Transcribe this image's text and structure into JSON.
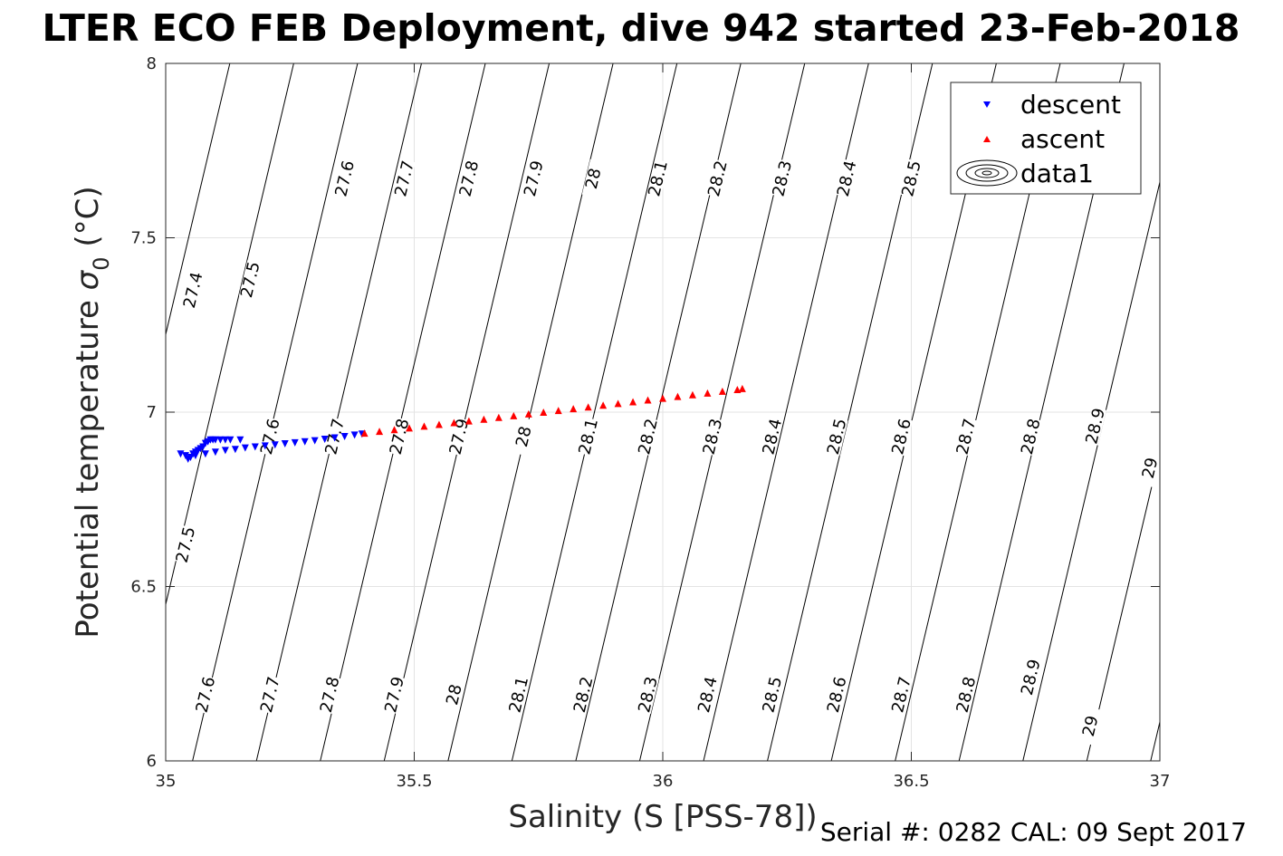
{
  "chart_data": {
    "type": "scatter",
    "title": "LTER ECO FEB Deployment, dive 942 started 23-Feb-2018",
    "xlabel": "Salinity (S [PSS-78])",
    "ylabel_main": "Potential temperature ",
    "ylabel_sym": "σ",
    "ylabel_sub": "0",
    "ylabel_unit": " (°C)",
    "xlim": [
      35,
      37
    ],
    "ylim": [
      6,
      8
    ],
    "xticks": [
      35,
      35.5,
      36,
      36.5,
      37
    ],
    "xtick_labels": [
      "35",
      "35.5",
      "36",
      "36.5",
      "37"
    ],
    "yticks": [
      6,
      6.5,
      7,
      7.5,
      8
    ],
    "ytick_labels": [
      "6",
      "6.5",
      "7",
      "7.5",
      "8"
    ],
    "grid": true,
    "legend_position": "top-right",
    "series": [
      {
        "name": "descent",
        "marker": "triangle-down",
        "color": "#0000ff",
        "points": [
          [
            35.03,
            6.88
          ],
          [
            35.04,
            6.875
          ],
          [
            35.045,
            6.865
          ],
          [
            35.05,
            6.87
          ],
          [
            35.055,
            6.88
          ],
          [
            35.06,
            6.885
          ],
          [
            35.065,
            6.89
          ],
          [
            35.07,
            6.895
          ],
          [
            35.075,
            6.9
          ],
          [
            35.08,
            6.91
          ],
          [
            35.085,
            6.915
          ],
          [
            35.09,
            6.92
          ],
          [
            35.095,
            6.92
          ],
          [
            35.1,
            6.92
          ],
          [
            35.11,
            6.92
          ],
          [
            35.12,
            6.92
          ],
          [
            35.13,
            6.92
          ],
          [
            35.15,
            6.92
          ],
          [
            35.06,
            6.875
          ],
          [
            35.08,
            6.88
          ],
          [
            35.1,
            6.885
          ],
          [
            35.12,
            6.89
          ],
          [
            35.14,
            6.893
          ],
          [
            35.16,
            6.897
          ],
          [
            35.18,
            6.9
          ],
          [
            35.2,
            6.903
          ],
          [
            35.22,
            6.906
          ],
          [
            35.24,
            6.909
          ],
          [
            35.26,
            6.912
          ],
          [
            35.28,
            6.915
          ],
          [
            35.3,
            6.918
          ],
          [
            35.32,
            6.922
          ],
          [
            35.34,
            6.926
          ],
          [
            35.36,
            6.93
          ],
          [
            35.38,
            6.934
          ],
          [
            35.395,
            6.937
          ]
        ]
      },
      {
        "name": "ascent",
        "marker": "triangle-up",
        "color": "#ff0000",
        "points": [
          [
            35.4,
            6.94
          ],
          [
            35.43,
            6.945
          ],
          [
            35.46,
            6.95
          ],
          [
            35.49,
            6.955
          ],
          [
            35.52,
            6.96
          ],
          [
            35.55,
            6.965
          ],
          [
            35.58,
            6.97
          ],
          [
            35.61,
            6.975
          ],
          [
            35.64,
            6.98
          ],
          [
            35.67,
            6.985
          ],
          [
            35.7,
            6.99
          ],
          [
            35.73,
            6.995
          ],
          [
            35.76,
            7.0
          ],
          [
            35.79,
            7.005
          ],
          [
            35.82,
            7.01
          ],
          [
            35.85,
            7.015
          ],
          [
            35.88,
            7.02
          ],
          [
            35.91,
            7.025
          ],
          [
            35.94,
            7.03
          ],
          [
            35.97,
            7.035
          ],
          [
            36.0,
            7.04
          ],
          [
            36.03,
            7.045
          ],
          [
            36.06,
            7.05
          ],
          [
            36.09,
            7.055
          ],
          [
            36.12,
            7.06
          ],
          [
            36.15,
            7.065
          ],
          [
            36.16,
            7.068
          ]
        ]
      },
      {
        "name": "data1",
        "marker": "contour",
        "color": "#000000",
        "contours": [
          {
            "level": "27.4",
            "label_positions": [
              [
                35.055,
                7.35
              ]
            ]
          },
          {
            "level": "27.5",
            "label_positions": [
              [
                35.17,
                7.38
              ],
              [
                35.04,
                6.62
              ]
            ]
          },
          {
            "level": "27.6",
            "label_positions": [
              [
                35.36,
                7.67
              ],
              [
                35.21,
                6.93
              ],
              [
                35.08,
                6.19
              ]
            ]
          },
          {
            "level": "27.7",
            "label_positions": [
              [
                35.48,
                7.67
              ],
              [
                35.34,
                6.93
              ],
              [
                35.21,
                6.19
              ]
            ]
          },
          {
            "level": "27.8",
            "label_positions": [
              [
                35.61,
                7.67
              ],
              [
                35.47,
                6.93
              ],
              [
                35.33,
                6.19
              ]
            ]
          },
          {
            "level": "27.9",
            "label_positions": [
              [
                35.74,
                7.67
              ],
              [
                35.59,
                6.93
              ],
              [
                35.46,
                6.19
              ]
            ]
          },
          {
            "level": "28",
            "label_positions": [
              [
                35.86,
                7.67
              ],
              [
                35.72,
                6.93
              ],
              [
                35.58,
                6.19
              ]
            ]
          },
          {
            "level": "28.1",
            "label_positions": [
              [
                35.99,
                7.67
              ],
              [
                35.85,
                6.93
              ],
              [
                35.71,
                6.19
              ]
            ]
          },
          {
            "level": "28.2",
            "label_positions": [
              [
                36.11,
                7.67
              ],
              [
                35.97,
                6.93
              ],
              [
                35.84,
                6.19
              ]
            ]
          },
          {
            "level": "28.3",
            "label_positions": [
              [
                36.24,
                7.67
              ],
              [
                36.1,
                6.93
              ],
              [
                35.97,
                6.19
              ]
            ]
          },
          {
            "level": "28.4",
            "label_positions": [
              [
                36.37,
                7.67
              ],
              [
                36.22,
                6.93
              ],
              [
                36.09,
                6.19
              ]
            ]
          },
          {
            "level": "28.5",
            "label_positions": [
              [
                36.5,
                7.67
              ],
              [
                36.35,
                6.93
              ],
              [
                36.22,
                6.19
              ]
            ]
          },
          {
            "level": "28.6",
            "label_positions": [
              [
                36.48,
                6.93
              ],
              [
                36.35,
                6.19
              ]
            ]
          },
          {
            "level": "28.7",
            "label_positions": [
              [
                36.61,
                6.93
              ],
              [
                36.48,
                6.19
              ]
            ]
          },
          {
            "level": "28.8",
            "label_positions": [
              [
                36.74,
                6.93
              ],
              [
                36.61,
                6.19
              ]
            ]
          },
          {
            "level": "28.9",
            "label_positions": [
              [
                36.87,
                6.96
              ],
              [
                36.74,
                6.24
              ]
            ]
          },
          {
            "level": "29",
            "label_positions": [
              [
                36.98,
                6.84
              ],
              [
                36.86,
                6.1
              ]
            ]
          }
        ]
      }
    ],
    "legend": [
      {
        "name": "descent",
        "marker": "triangle-down",
        "color": "#0000ff"
      },
      {
        "name": "ascent",
        "marker": "triangle-up",
        "color": "#ff0000"
      },
      {
        "name": "data1",
        "marker": "contour",
        "color": "#000000"
      }
    ],
    "footer": "Serial #: 0282  CAL: 09 Sept 2017"
  }
}
